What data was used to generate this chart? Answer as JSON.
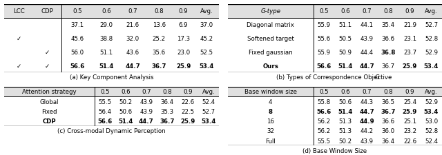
{
  "table_a": {
    "caption": "(a) Key Component Analysis",
    "col_headers": [
      "LCC",
      "CDP",
      "0.5",
      "0.6",
      "0.7",
      "0.8",
      "0.9",
      "Avg."
    ],
    "rows": [
      {
        "lcc": false,
        "cdp": false,
        "vals": [
          "37.1",
          "29.0",
          "21.6",
          "13.6",
          "6.9",
          "37.0"
        ],
        "bold": []
      },
      {
        "lcc": true,
        "cdp": false,
        "vals": [
          "45.6",
          "38.8",
          "32.0",
          "25.2",
          "17.3",
          "45.2"
        ],
        "bold": []
      },
      {
        "lcc": false,
        "cdp": true,
        "vals": [
          "56.0",
          "51.1",
          "43.6",
          "35.6",
          "23.0",
          "52.5"
        ],
        "bold": []
      },
      {
        "lcc": true,
        "cdp": true,
        "vals": [
          "56.6",
          "51.4",
          "44.7",
          "36.7",
          "25.9",
          "53.4"
        ],
        "bold": [
          0,
          1,
          2,
          3,
          4,
          5
        ]
      }
    ]
  },
  "table_b": {
    "caption_prefix": "(b) Types of Correspondence Objective ",
    "caption_suffix": "G",
    "col_headers": [
      "G-type",
      "0.5",
      "0.6",
      "0.7",
      "0.8",
      "0.9",
      "Avg."
    ],
    "rows": [
      {
        "name": "Diagonal matrix",
        "vals": [
          "55.9",
          "51.1",
          "44.1",
          "35.4",
          "21.9",
          "52.7"
        ],
        "bold": [],
        "name_bold": false
      },
      {
        "name": "Softened target",
        "vals": [
          "55.6",
          "50.5",
          "43.9",
          "36.6",
          "23.1",
          "52.8"
        ],
        "bold": [],
        "name_bold": false
      },
      {
        "name": "Fixed gaussian",
        "vals": [
          "55.9",
          "50.9",
          "44.4",
          "36.8",
          "23.7",
          "52.9"
        ],
        "bold": [
          3
        ],
        "name_bold": false
      },
      {
        "name": "Ours",
        "vals": [
          "56.6",
          "51.4",
          "44.7",
          "36.7",
          "25.9",
          "53.4"
        ],
        "bold": [
          0,
          1,
          2,
          4,
          5
        ],
        "name_bold": true
      }
    ]
  },
  "table_c": {
    "caption": "(c) Cross-modal Dynamic Perception",
    "col_headers": [
      "Attention strategy",
      "0.5",
      "0.6",
      "0.7",
      "0.8",
      "0.9",
      "Avg."
    ],
    "rows": [
      {
        "name": "Global",
        "vals": [
          "55.5",
          "50.2",
          "43.9",
          "36.4",
          "22.6",
          "52.4"
        ],
        "bold": [],
        "name_bold": false
      },
      {
        "name": "Fixed",
        "vals": [
          "56.4",
          "50.6",
          "43.9",
          "35.3",
          "22.5",
          "52.7"
        ],
        "bold": [],
        "name_bold": false
      },
      {
        "name": "CDP",
        "vals": [
          "56.6",
          "51.4",
          "44.7",
          "36.7",
          "25.9",
          "53.4"
        ],
        "bold": [
          0,
          1,
          2,
          3,
          4,
          5
        ],
        "name_bold": true
      }
    ]
  },
  "table_d": {
    "caption": "(d) Base Window Size",
    "col_headers": [
      "Base window size",
      "0.5",
      "0.6",
      "0.7",
      "0.8",
      "0.9",
      "Avg."
    ],
    "rows": [
      {
        "name": "4",
        "vals": [
          "55.8",
          "50.6",
          "44.3",
          "36.5",
          "25.4",
          "52.9"
        ],
        "bold": [],
        "name_bold": false
      },
      {
        "name": "8",
        "vals": [
          "56.6",
          "51.4",
          "44.7",
          "36.7",
          "25.9",
          "53.4"
        ],
        "bold": [
          0,
          1,
          2,
          3,
          4,
          5
        ],
        "name_bold": true
      },
      {
        "name": "16",
        "vals": [
          "56.2",
          "51.3",
          "44.9",
          "36.6",
          "25.1",
          "53.0"
        ],
        "bold": [
          2
        ],
        "name_bold": false
      },
      {
        "name": "32",
        "vals": [
          "56.2",
          "51.3",
          "44.2",
          "36.0",
          "23.2",
          "52.8"
        ],
        "bold": [],
        "name_bold": false
      },
      {
        "name": "Full",
        "vals": [
          "55.5",
          "50.2",
          "43.9",
          "36.4",
          "22.6",
          "52.4"
        ],
        "bold": [],
        "name_bold": false
      }
    ]
  }
}
